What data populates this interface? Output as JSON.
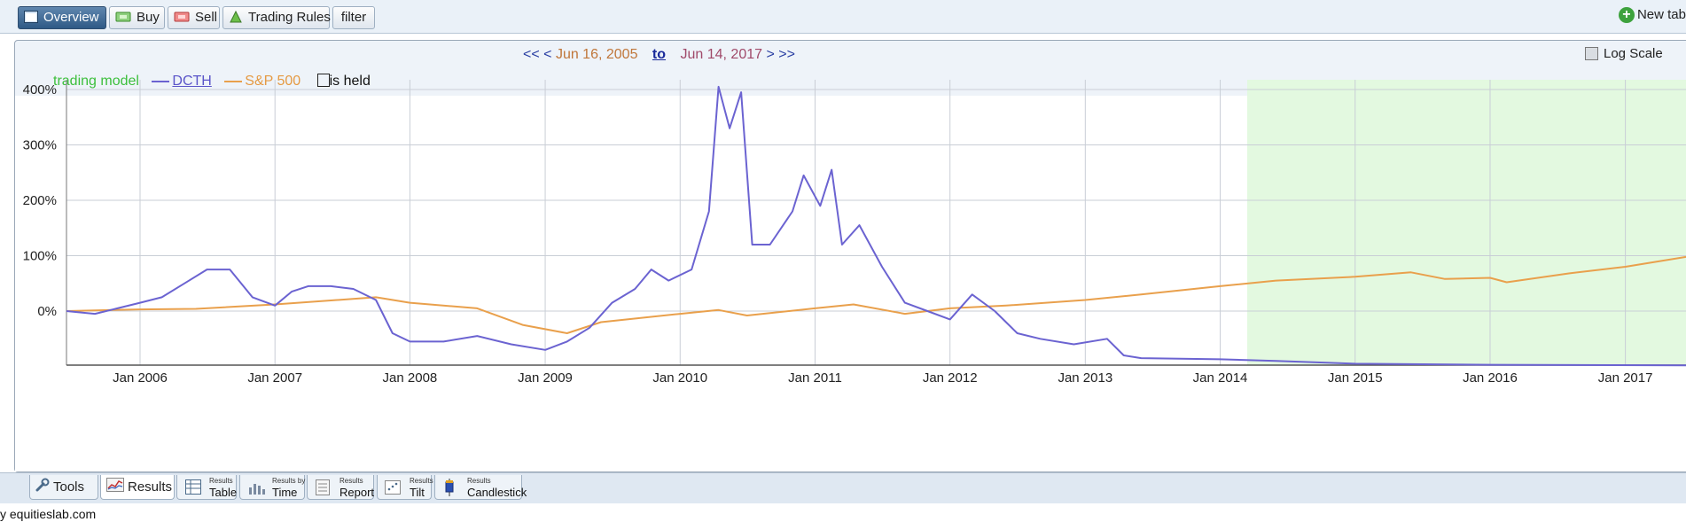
{
  "toolbar": {
    "tabs": [
      {
        "label": "Overview",
        "icon": "overview-icon",
        "active": true
      },
      {
        "label": "Buy",
        "icon": "buy-icon"
      },
      {
        "label": "Sell",
        "icon": "sell-icon"
      },
      {
        "label": "Trading Rules",
        "icon": "trading-rules-icon"
      },
      {
        "label": "filter"
      }
    ],
    "new_tab_label": "New tab"
  },
  "date_nav": {
    "prev_fast": "<<",
    "prev": "<",
    "start_date": "Jun 16, 2005",
    "to_label": "to",
    "end_date": "Jun 14, 2017",
    "next": ">",
    "next_fast": ">>"
  },
  "log_scale_label": "Log Scale",
  "legend": {
    "model_label": "trading model",
    "series1_label": "DCTH",
    "series2_label": "S&P 500",
    "held_label": "is held"
  },
  "colors": {
    "dcth": "#6b63d1",
    "sp500": "#e9a04c",
    "held_region": "#e3f9e0",
    "grid": "#c9ced6",
    "model": "#3cbf3c"
  },
  "chart_data": {
    "type": "line",
    "ylabel": "",
    "yticks": [
      "0%",
      "100%",
      "200%",
      "300%",
      "400%"
    ],
    "ylim": [
      -100,
      415
    ],
    "xlim": [
      "2005-06-16",
      "2017-06-14"
    ],
    "xticks": [
      "Jan 2006",
      "Jan 2007",
      "Jan 2008",
      "Jan 2009",
      "Jan 2010",
      "Jan 2011",
      "Jan 2012",
      "Jan 2013",
      "Jan 2014",
      "Jan 2015",
      "Jan 2016",
      "Jan 2017"
    ],
    "held_from": "2014-03-15",
    "grid": true,
    "series": [
      {
        "name": "DCTH",
        "points": [
          [
            "2005-06-16",
            0
          ],
          [
            "2005-09-01",
            -5
          ],
          [
            "2005-11-01",
            5
          ],
          [
            "2006-01-01",
            15
          ],
          [
            "2006-03-01",
            25
          ],
          [
            "2006-05-01",
            50
          ],
          [
            "2006-07-01",
            75
          ],
          [
            "2006-09-01",
            75
          ],
          [
            "2006-11-01",
            25
          ],
          [
            "2007-01-01",
            10
          ],
          [
            "2007-02-15",
            35
          ],
          [
            "2007-04-01",
            45
          ],
          [
            "2007-06-01",
            45
          ],
          [
            "2007-08-01",
            40
          ],
          [
            "2007-10-01",
            20
          ],
          [
            "2007-11-15",
            -40
          ],
          [
            "2008-01-01",
            -55
          ],
          [
            "2008-04-01",
            -55
          ],
          [
            "2008-07-01",
            -45
          ],
          [
            "2008-10-01",
            -60
          ],
          [
            "2009-01-01",
            -70
          ],
          [
            "2009-03-01",
            -55
          ],
          [
            "2009-05-01",
            -30
          ],
          [
            "2009-07-01",
            15
          ],
          [
            "2009-09-01",
            40
          ],
          [
            "2009-10-15",
            75
          ],
          [
            "2009-12-01",
            55
          ],
          [
            "2010-02-01",
            75
          ],
          [
            "2010-03-20",
            180
          ],
          [
            "2010-04-15",
            405
          ],
          [
            "2010-05-15",
            330
          ],
          [
            "2010-06-15",
            395
          ],
          [
            "2010-07-15",
            120
          ],
          [
            "2010-09-01",
            120
          ],
          [
            "2010-11-01",
            180
          ],
          [
            "2010-12-01",
            245
          ],
          [
            "2011-01-15",
            190
          ],
          [
            "2011-02-15",
            255
          ],
          [
            "2011-03-15",
            120
          ],
          [
            "2011-05-01",
            155
          ],
          [
            "2011-07-01",
            80
          ],
          [
            "2011-09-01",
            15
          ],
          [
            "2011-11-01",
            0
          ],
          [
            "2012-01-01",
            -15
          ],
          [
            "2012-03-01",
            30
          ],
          [
            "2012-05-01",
            0
          ],
          [
            "2012-07-01",
            -40
          ],
          [
            "2012-09-01",
            -50
          ],
          [
            "2012-12-01",
            -60
          ],
          [
            "2013-03-01",
            -50
          ],
          [
            "2013-04-15",
            -80
          ],
          [
            "2013-06-01",
            -85
          ],
          [
            "2014-01-01",
            -87
          ],
          [
            "2014-06-01",
            -90
          ],
          [
            "2015-01-01",
            -95
          ],
          [
            "2016-01-01",
            -97
          ],
          [
            "2017-06-14",
            -98
          ]
        ]
      },
      {
        "name": "S&P 500",
        "points": [
          [
            "2005-06-16",
            0
          ],
          [
            "2006-01-01",
            3
          ],
          [
            "2006-06-01",
            4
          ],
          [
            "2007-01-01",
            12
          ],
          [
            "2007-10-01",
            25
          ],
          [
            "2008-01-01",
            15
          ],
          [
            "2008-07-01",
            5
          ],
          [
            "2008-11-01",
            -25
          ],
          [
            "2009-03-01",
            -40
          ],
          [
            "2009-06-01",
            -20
          ],
          [
            "2010-01-01",
            -5
          ],
          [
            "2010-04-15",
            2
          ],
          [
            "2010-07-01",
            -8
          ],
          [
            "2011-01-01",
            5
          ],
          [
            "2011-04-15",
            12
          ],
          [
            "2011-09-01",
            -5
          ],
          [
            "2012-01-01",
            5
          ],
          [
            "2012-06-01",
            10
          ],
          [
            "2013-01-01",
            20
          ],
          [
            "2013-06-01",
            30
          ],
          [
            "2014-01-01",
            45
          ],
          [
            "2014-06-01",
            55
          ],
          [
            "2015-01-01",
            62
          ],
          [
            "2015-06-01",
            70
          ],
          [
            "2015-09-01",
            58
          ],
          [
            "2016-01-01",
            60
          ],
          [
            "2016-02-15",
            52
          ],
          [
            "2016-08-01",
            68
          ],
          [
            "2017-01-01",
            80
          ],
          [
            "2017-06-14",
            98
          ]
        ]
      }
    ]
  },
  "bottom_tabs": [
    {
      "label": "Tools",
      "icon": "wrench-icon"
    },
    {
      "label": "Results",
      "icon": "results-chart-icon",
      "active": true
    },
    {
      "small": "Results",
      "label": "Table",
      "icon": "table-icon"
    },
    {
      "small": "Results by",
      "label": "Time",
      "icon": "time-icon"
    },
    {
      "small": "Results",
      "label": "Report",
      "icon": "report-icon"
    },
    {
      "small": "Results",
      "label": "Tilt",
      "icon": "tilt-icon"
    },
    {
      "small": "Results",
      "label": "Candlestick",
      "icon": "candlestick-icon"
    }
  ],
  "footer_text": "y equitieslab.com"
}
